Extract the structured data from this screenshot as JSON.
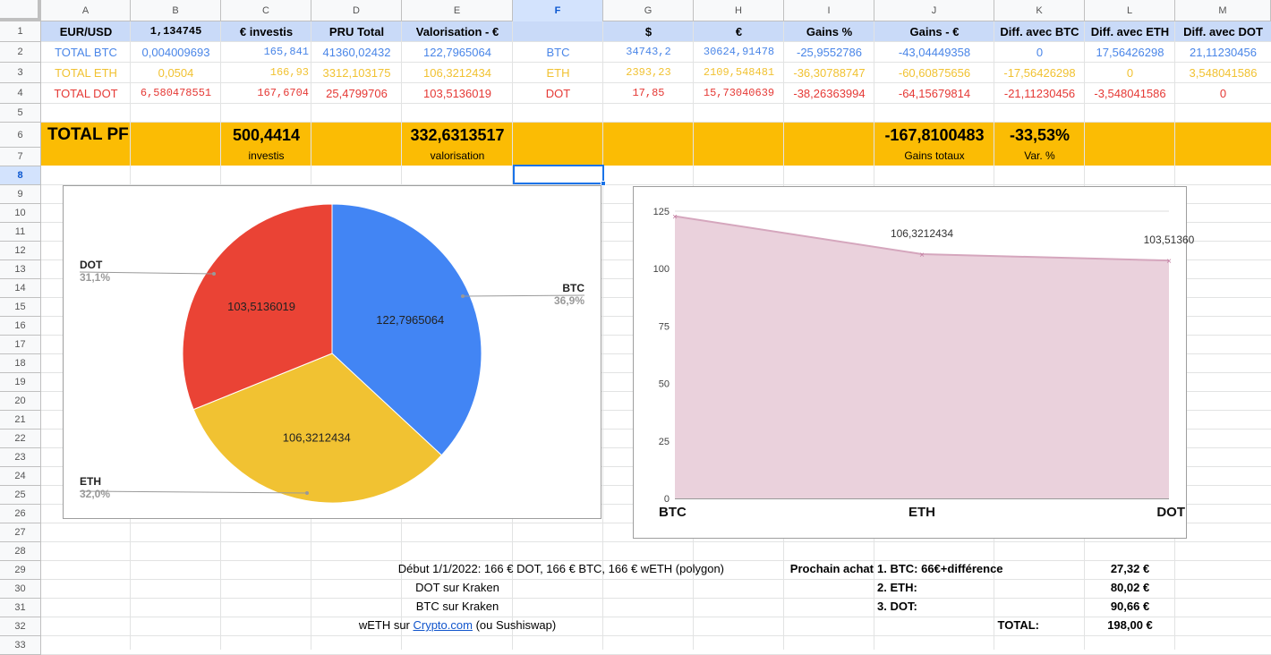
{
  "columns": [
    "A",
    "B",
    "C",
    "D",
    "E",
    "F",
    "G",
    "H",
    "I",
    "J",
    "K",
    "L",
    "M"
  ],
  "rows": [
    "1",
    "2",
    "3",
    "4",
    "5",
    "6",
    "7",
    "8",
    "9",
    "10",
    "11",
    "12",
    "13",
    "14",
    "15",
    "16",
    "17",
    "18",
    "19",
    "20",
    "21",
    "22",
    "23",
    "24",
    "25",
    "26",
    "27",
    "28",
    "29",
    "30",
    "31",
    "32",
    "33"
  ],
  "header_row": {
    "a": "EUR/USD",
    "b": "1,134745",
    "c": "€ investis",
    "d": "PRU Total",
    "e": "Valorisation - €",
    "g": "$",
    "h": "€",
    "i": "Gains %",
    "j": "Gains - €",
    "k": "Diff. avec BTC",
    "l": "Diff. avec ETH",
    "m": "Diff. avec DOT"
  },
  "assets": [
    {
      "label": "TOTAL BTC",
      "qty": "0,004009693",
      "invested": "165,841",
      "pru": "41360,02432",
      "valo": "122,7965064",
      "ticker": "BTC",
      "usd": "34743,2",
      "eur": "30624,91478",
      "gain_pct": "-25,9552786",
      "gain_eur": "-43,04449358",
      "diff_btc": "0",
      "diff_eth": "17,56426298",
      "diff_dot": "21,11230456",
      "color": "#4a86e8"
    },
    {
      "label": "TOTAL ETH",
      "qty": "0,0504",
      "invested": "166,93",
      "pru": "3312,103175",
      "valo": "106,3212434",
      "ticker": "ETH",
      "usd": "2393,23",
      "eur": "2109,548481",
      "gain_pct": "-36,30788747",
      "gain_eur": "-60,60875656",
      "diff_btc": "-17,56426298",
      "diff_eth": "0",
      "diff_dot": "3,548041586",
      "color": "#f1c232"
    },
    {
      "label": "TOTAL DOT",
      "qty": "6,580478551",
      "invested": "167,6704",
      "pru": "25,4799706",
      "valo": "103,5136019",
      "ticker": "DOT",
      "usd": "17,85",
      "eur": "15,73040639",
      "gain_pct": "-38,26363994",
      "gain_eur": "-64,15679814",
      "diff_btc": "-21,11230456",
      "diff_eth": "-3,548041586",
      "diff_dot": "0",
      "color": "#e53935"
    }
  ],
  "total": {
    "label": "TOTAL PF",
    "invested": "500,4414",
    "invested_label": "investis",
    "valo": "332,6313517",
    "valo_label": "valorisation",
    "gains": "-167,8100483",
    "gains_label": "Gains totaux",
    "var": "-33,53%",
    "var_label": "Var. %"
  },
  "notes": {
    "debut": "Début 1/1/2022: 166 € DOT, 166 € BTC, 166 € wETH (polygon)",
    "dot_kraken": "DOT sur Kraken",
    "btc_kraken": "BTC sur Kraken",
    "weth_pre": "wETH sur ",
    "weth_link": "Crypto.com",
    "weth_post": " (ou Sushiswap)",
    "prochain": "Prochain achat",
    "achat1": "1. BTC: 66€+différence",
    "achat2": "2. ETH:",
    "achat3": "3. DOT:",
    "achat1_val": "27,32 €",
    "achat2_val": "80,02 €",
    "achat3_val": "90,66 €",
    "total_label": "TOTAL:",
    "total_val": "198,00 €"
  },
  "chart_data": [
    {
      "type": "pie",
      "slices": [
        {
          "name": "BTC",
          "value": 122.7965064,
          "label": "122,7965064",
          "pct": "36,9%",
          "color": "#4285f4"
        },
        {
          "name": "ETH",
          "value": 106.3212434,
          "label": "106,3212434",
          "pct": "32,0%",
          "color": "#f1c232"
        },
        {
          "name": "DOT",
          "value": 103.5136019,
          "label": "103,5136019",
          "pct": "31,1%",
          "color": "#ea4335"
        }
      ]
    },
    {
      "type": "area",
      "categories": [
        "BTC",
        "ETH",
        "DOT"
      ],
      "values": [
        122.7965064,
        106.3212434,
        103.5136019
      ],
      "data_labels": [
        "",
        "106,3212434",
        "103,51360"
      ],
      "y_ticks": [
        "0",
        "25",
        "50",
        "75",
        "100",
        "125"
      ],
      "ylim": [
        0,
        125
      ],
      "fill_color": "#ead1dc",
      "line_color": "#d5a6bd",
      "grid": true
    }
  ]
}
